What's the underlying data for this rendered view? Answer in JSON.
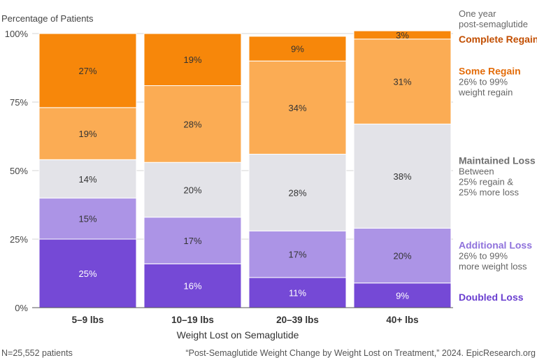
{
  "chart_data": {
    "type": "bar",
    "stacked": true,
    "ylabel": "Percentage of Patients",
    "xlabel": "Weight Lost on Semaglutide",
    "ylim": [
      0,
      100
    ],
    "yticks": [
      "0%",
      "25%",
      "50%",
      "75%",
      "100%"
    ],
    "categories": [
      "5–9 lbs",
      "10–19 lbs",
      "20–39 lbs",
      "40+ lbs"
    ],
    "legend_header": [
      "One year",
      "post-semaglutide"
    ],
    "series": [
      {
        "name": "Doubled Loss",
        "sub": [],
        "color": "#7549d6",
        "label_color": "#ffffff",
        "values": [
          25,
          16,
          11,
          9
        ]
      },
      {
        "name": "Additional Loss",
        "sub": [
          "26% to 99%",
          "more weight loss"
        ],
        "color": "#ac94e6",
        "label_color": "#333333",
        "values": [
          15,
          17,
          17,
          20
        ]
      },
      {
        "name": "Maintained Loss",
        "sub": [
          "Between",
          "25% regain &",
          "25% more loss"
        ],
        "color": "#e3e3e8",
        "label_color": "#333333",
        "values": [
          14,
          20,
          28,
          38
        ]
      },
      {
        "name": "Some Regain",
        "sub": [
          "26% to 99%",
          "weight regain"
        ],
        "color": "#fbac54",
        "label_color": "#333333",
        "values": [
          19,
          28,
          34,
          31
        ]
      },
      {
        "name": "Complete Regain",
        "sub": [],
        "color": "#f7870a",
        "label_color": "#333333",
        "values": [
          27,
          19,
          9,
          3
        ]
      }
    ],
    "legend_title_colors": [
      "#6a3fd0",
      "#8f72dc",
      "#707070",
      "#e36c0a",
      "#c24e00"
    ]
  },
  "footer": {
    "left": "N=25,552 patients",
    "right": "“Post-Semaglutide Weight Change by Weight Lost on Treatment,” 2024. EpicResearch.org"
  }
}
